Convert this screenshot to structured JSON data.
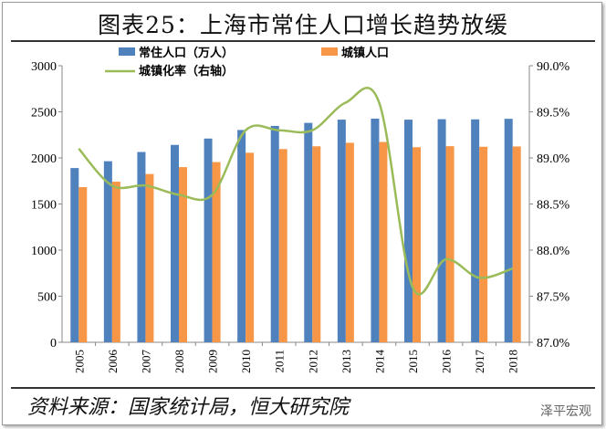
{
  "title": "图表25：上海市常住人口增长趋势放缓",
  "source": "资料来源：国家统计局，恒大研究院",
  "watermark": "泽平宏观",
  "colors": {
    "resident": "#4f81bd",
    "urban": "#f79646",
    "rate": "#9bbb59"
  },
  "chart_data": {
    "type": "bar",
    "title": "图表25：上海市常住人口增长趋势放缓",
    "categories": [
      "2005",
      "2006",
      "2007",
      "2008",
      "2009",
      "2010",
      "2011",
      "2012",
      "2013",
      "2014",
      "2015",
      "2016",
      "2017",
      "2018"
    ],
    "series": [
      {
        "name": "常住人口（万人）",
        "type": "bar",
        "axis": "left",
        "values": [
          1890,
          1964,
          2064,
          2141,
          2210,
          2303,
          2347,
          2380,
          2415,
          2426,
          2415,
          2420,
          2418,
          2424
        ]
      },
      {
        "name": "城镇人口",
        "type": "bar",
        "axis": "left",
        "values": [
          1683,
          1742,
          1825,
          1900,
          1955,
          2056,
          2096,
          2126,
          2164,
          2173,
          2116,
          2127,
          2121,
          2124
        ]
      },
      {
        "name": "城镇化率（右轴）",
        "type": "line",
        "axis": "right",
        "values": [
          89.1,
          88.7,
          88.7,
          88.6,
          88.6,
          89.3,
          89.3,
          89.3,
          89.6,
          89.6,
          87.6,
          87.9,
          87.7,
          87.8
        ]
      }
    ],
    "ylim": [
      0,
      3000
    ],
    "yticks": [
      "0",
      "500",
      "1000",
      "1500",
      "2000",
      "2500",
      "3000"
    ],
    "y2lim": [
      87.0,
      90.0
    ],
    "y2ticks": [
      "87.0%",
      "87.5%",
      "88.0%",
      "88.5%",
      "89.0%",
      "89.5%",
      "90.0%"
    ],
    "legend": "top"
  }
}
